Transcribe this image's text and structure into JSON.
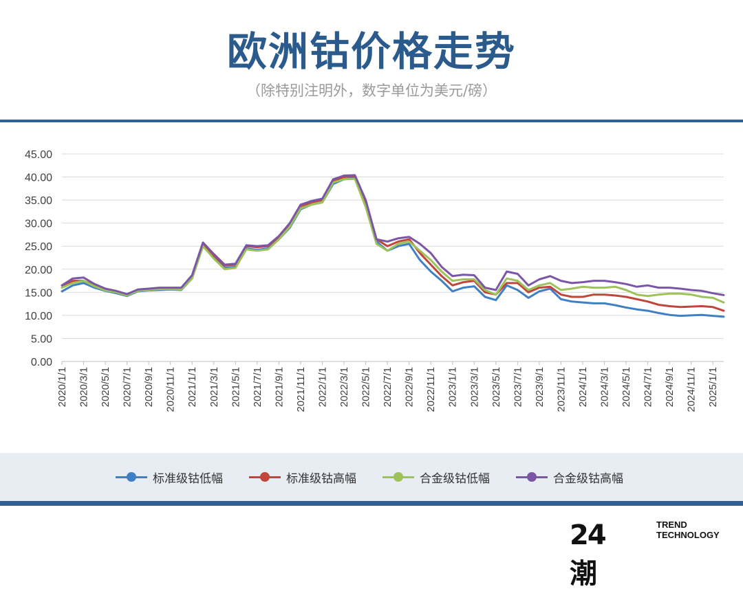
{
  "header": {
    "title": "欧洲钴价格走势",
    "subtitle": "（除特别注明外，数字单位为美元/磅）"
  },
  "legend": [
    {
      "name": "标准级钴低幅",
      "color": "#3f80c4"
    },
    {
      "name": "标准级钴高幅",
      "color": "#c0463c"
    },
    {
      "name": "合金级钴低幅",
      "color": "#9dc25a"
    },
    {
      "name": "合金级钴高幅",
      "color": "#7c56a6"
    }
  ],
  "logo": {
    "mark": "24潮",
    "line1": "TREND",
    "line2": "TECHNOLOGY"
  },
  "chart_data": {
    "type": "line",
    "ylim": [
      0,
      45
    ],
    "yticks": [
      "0.00",
      "5.00",
      "10.00",
      "15.00",
      "20.00",
      "25.00",
      "30.00",
      "35.00",
      "40.00",
      "45.00"
    ],
    "xticks": [
      "2020/1/1",
      "2020/3/1",
      "2020/5/1",
      "2020/7/1",
      "2020/9/1",
      "2020/11/1",
      "2021/1/1",
      "2021/3/1",
      "2021/5/1",
      "2021/7/1",
      "2021/9/1",
      "2021/11/1",
      "2022/1/1",
      "2022/3/1",
      "2022/5/1",
      "2022/7/1",
      "2022/9/1",
      "2022/11/1",
      "2023/1/1",
      "2023/3/1",
      "2023/5/1",
      "2023/7/1",
      "2023/9/1",
      "2023/11/1",
      "2024/1/1",
      "2024/3/1",
      "2024/5/1",
      "2024/7/1",
      "2024/9/1",
      "2024/11/1",
      "2025/1/1"
    ],
    "x": [
      "2020/1",
      "2020/2",
      "2020/3",
      "2020/4",
      "2020/5",
      "2020/6",
      "2020/7",
      "2020/8",
      "2020/9",
      "2020/10",
      "2020/11",
      "2020/12",
      "2021/1",
      "2021/2",
      "2021/3",
      "2021/4",
      "2021/5",
      "2021/6",
      "2021/7",
      "2021/8",
      "2021/9",
      "2021/10",
      "2021/11",
      "2021/12",
      "2022/1",
      "2022/2",
      "2022/3",
      "2022/4",
      "2022/5",
      "2022/6",
      "2022/7",
      "2022/8",
      "2022/9",
      "2022/10",
      "2022/11",
      "2022/12",
      "2023/1",
      "2023/2",
      "2023/3",
      "2023/4",
      "2023/5",
      "2023/6",
      "2023/7",
      "2023/8",
      "2023/9",
      "2023/10",
      "2023/11",
      "2023/12",
      "2024/1",
      "2024/2",
      "2024/3",
      "2024/4",
      "2024/5",
      "2024/6",
      "2024/7",
      "2024/8",
      "2024/9",
      "2024/10",
      "2024/11",
      "2024/12",
      "2025/1",
      "2025/2"
    ],
    "series": [
      {
        "name": "标准级钴低幅",
        "values": [
          15.2,
          16.5,
          17.0,
          16.0,
          15.3,
          14.8,
          14.2,
          15.2,
          15.4,
          15.5,
          15.6,
          15.5,
          18.0,
          25.0,
          22.5,
          20.3,
          20.5,
          24.5,
          24.2,
          24.5,
          26.5,
          29.0,
          33.0,
          34.0,
          34.5,
          38.5,
          39.5,
          39.8,
          34.0,
          26.0,
          24.0,
          25.0,
          25.5,
          22.0,
          19.5,
          17.5,
          15.2,
          16.0,
          16.3,
          14.0,
          13.3,
          16.5,
          15.5,
          13.8,
          15.2,
          15.8,
          13.5,
          13.0,
          12.8,
          12.6,
          12.6,
          12.2,
          11.7,
          11.3,
          11.0,
          10.5,
          10.1,
          9.9,
          10.0,
          10.1,
          9.9,
          9.7
        ]
      },
      {
        "name": "标准级钴高幅",
        "values": [
          16.0,
          17.5,
          17.5,
          16.5,
          15.5,
          15.0,
          14.5,
          15.5,
          15.7,
          15.8,
          15.9,
          15.8,
          18.5,
          25.5,
          23.0,
          20.8,
          21.0,
          25.0,
          24.8,
          25.0,
          27.0,
          29.5,
          33.5,
          34.5,
          35.0,
          39.2,
          40.0,
          40.2,
          34.5,
          26.5,
          25.0,
          26.0,
          26.5,
          23.5,
          21.0,
          18.5,
          16.5,
          17.2,
          17.5,
          15.0,
          14.5,
          17.0,
          17.0,
          15.0,
          16.0,
          16.2,
          14.5,
          14.0,
          14.0,
          14.5,
          14.5,
          14.3,
          14.0,
          13.5,
          13.0,
          12.3,
          12.0,
          11.8,
          11.9,
          12.0,
          11.8,
          11.0
        ]
      },
      {
        "name": "合金级钴低幅",
        "values": [
          16.0,
          17.0,
          17.5,
          16.3,
          15.4,
          15.0,
          14.3,
          15.3,
          15.5,
          15.7,
          15.7,
          15.6,
          18.0,
          25.0,
          22.3,
          20.0,
          20.3,
          24.3,
          24.0,
          24.3,
          26.5,
          29.2,
          33.2,
          34.0,
          34.5,
          38.8,
          39.5,
          39.6,
          33.5,
          25.5,
          24.0,
          25.5,
          26.0,
          24.0,
          22.0,
          19.5,
          17.5,
          17.8,
          17.8,
          15.5,
          14.5,
          18.0,
          17.5,
          15.5,
          16.5,
          17.0,
          15.5,
          15.8,
          16.2,
          16.0,
          16.0,
          16.2,
          15.5,
          14.5,
          14.2,
          14.5,
          14.7,
          14.7,
          14.5,
          14.0,
          13.8,
          12.8
        ]
      },
      {
        "name": "合金级钴高幅",
        "values": [
          16.5,
          18.0,
          18.2,
          16.8,
          15.8,
          15.3,
          14.6,
          15.6,
          15.8,
          16.0,
          16.0,
          16.0,
          18.7,
          25.8,
          23.3,
          21.0,
          21.2,
          25.2,
          25.0,
          25.2,
          27.2,
          30.0,
          34.0,
          34.8,
          35.3,
          39.5,
          40.3,
          40.4,
          35.0,
          26.5,
          26.0,
          26.7,
          27.0,
          25.5,
          23.5,
          20.5,
          18.5,
          18.8,
          18.7,
          16.0,
          15.5,
          19.5,
          19.0,
          16.5,
          17.8,
          18.5,
          17.5,
          17.0,
          17.2,
          17.5,
          17.5,
          17.2,
          16.8,
          16.2,
          16.5,
          16.0,
          16.0,
          15.8,
          15.5,
          15.3,
          14.8,
          14.4
        ]
      }
    ]
  }
}
